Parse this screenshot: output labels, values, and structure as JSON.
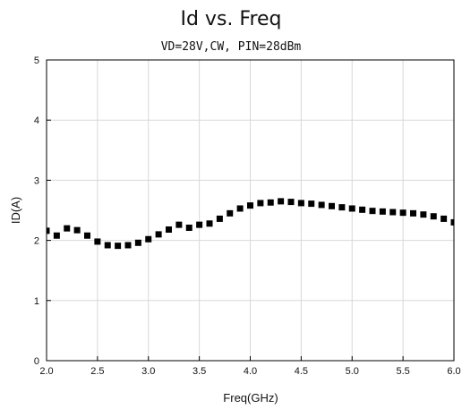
{
  "chart_data": {
    "type": "scatter",
    "title": "Id vs. Freq",
    "subtitle": "VD=28V,CW, PIN=28dBm",
    "xlabel": "Freq(GHz)",
    "ylabel": "ID(A)",
    "xlim": [
      2.0,
      6.0
    ],
    "ylim": [
      0,
      5
    ],
    "xticks": [
      "2.0",
      "2.5",
      "3.0",
      "3.5",
      "4.0",
      "4.5",
      "5.0",
      "5.5",
      "6.0"
    ],
    "yticks": [
      "0",
      "1",
      "2",
      "3",
      "4",
      "5"
    ],
    "grid": true,
    "series": [
      {
        "marker": "square",
        "color": "#000000",
        "x": [
          2.0,
          2.1,
          2.2,
          2.3,
          2.4,
          2.5,
          2.6,
          2.7,
          2.8,
          2.9,
          3.0,
          3.1,
          3.2,
          3.3,
          3.4,
          3.5,
          3.6,
          3.7,
          3.8,
          3.9,
          4.0,
          4.1,
          4.2,
          4.3,
          4.4,
          4.5,
          4.6,
          4.7,
          4.8,
          4.9,
          5.0,
          5.1,
          5.2,
          5.3,
          5.4,
          5.5,
          5.6,
          5.7,
          5.8,
          5.9,
          6.0
        ],
        "y": [
          2.16,
          2.08,
          2.2,
          2.17,
          2.08,
          1.98,
          1.92,
          1.91,
          1.92,
          1.96,
          2.02,
          2.1,
          2.18,
          2.26,
          2.21,
          2.26,
          2.28,
          2.36,
          2.45,
          2.53,
          2.58,
          2.62,
          2.63,
          2.65,
          2.64,
          2.62,
          2.61,
          2.59,
          2.57,
          2.55,
          2.53,
          2.51,
          2.49,
          2.48,
          2.47,
          2.46,
          2.45,
          2.43,
          2.4,
          2.36,
          2.3
        ]
      }
    ]
  }
}
